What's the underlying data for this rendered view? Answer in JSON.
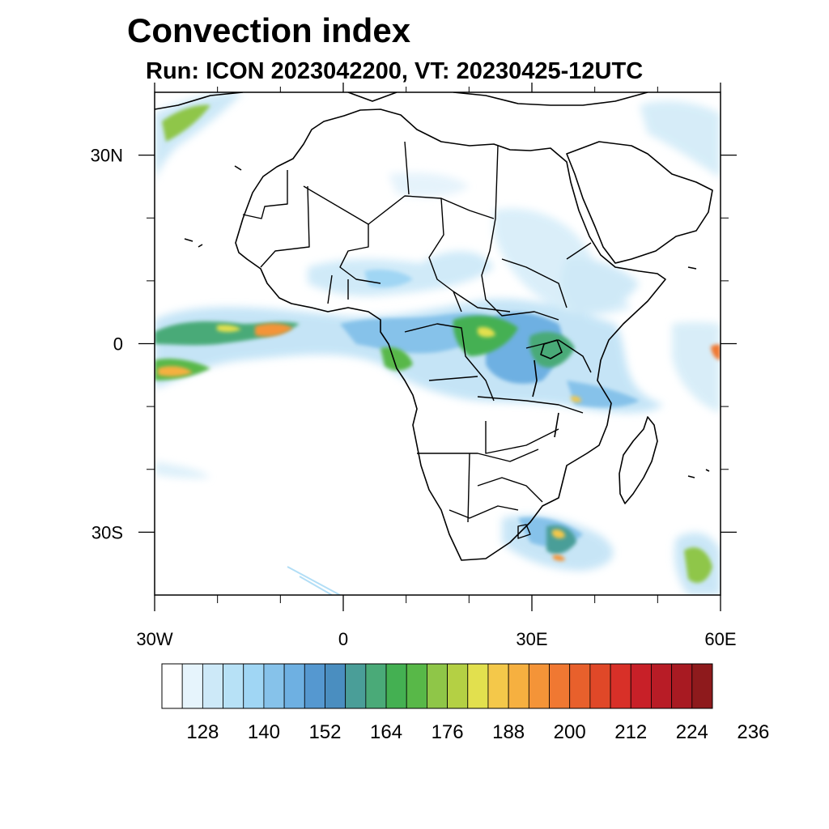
{
  "title": "Convection index",
  "subtitle": "Run: ICON 2023042200,  VT: 20230425-12UTC",
  "map": {
    "lon_range": [
      -30,
      60
    ],
    "lat_range": [
      -40,
      40
    ],
    "lon_ticks": [
      {
        "value": -30,
        "label": "30W"
      },
      {
        "value": 0,
        "label": "0"
      },
      {
        "value": 30,
        "label": "30E"
      },
      {
        "value": 60,
        "label": "60E"
      }
    ],
    "lat_ticks": [
      {
        "value": 30,
        "label": "30N"
      },
      {
        "value": 0,
        "label": "0"
      },
      {
        "value": -30,
        "label": "30S"
      }
    ],
    "minor_lon_ticks": [
      -20,
      -10,
      10,
      20,
      40,
      50
    ],
    "minor_lat_ticks": [
      20,
      10,
      -10,
      -20
    ]
  },
  "colorbar": {
    "labels": [
      "128",
      "140",
      "152",
      "164",
      "176",
      "188",
      "200",
      "212",
      "224",
      "236"
    ],
    "colors": [
      "#ffffff",
      "#e6f4fc",
      "#cde9f8",
      "#b7e1f6",
      "#a0d6f4",
      "#86c2ea",
      "#6eb0e2",
      "#5598d0",
      "#4a8ec0",
      "#4a9e98",
      "#4aaa78",
      "#44b052",
      "#58b848",
      "#8fc648",
      "#b4d044",
      "#e2e04e",
      "#f4c84a",
      "#f6b040",
      "#f49438",
      "#f07832",
      "#e8602c",
      "#e04828",
      "#d83028",
      "#c82028",
      "#b81c26",
      "#a81a22",
      "#8e1a1c"
    ]
  }
}
